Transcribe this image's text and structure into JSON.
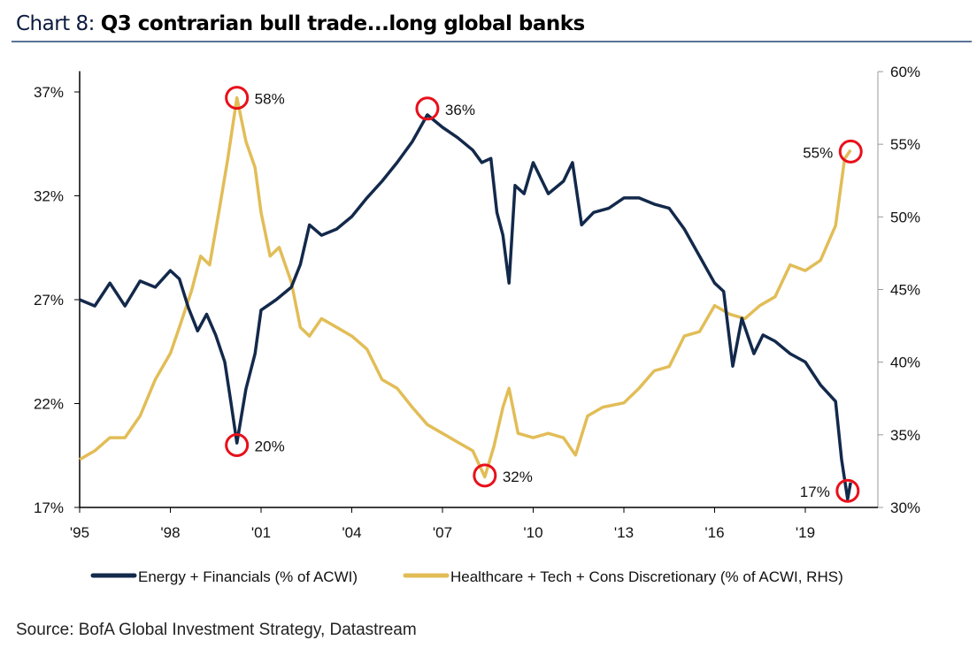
{
  "header": {
    "prefix": "Chart 8: ",
    "title": "Q3 contrarian bull trade...long global banks"
  },
  "source": "Source: BofA Global Investment Strategy, Datastream",
  "chart_data": {
    "type": "line",
    "title": "Q3 contrarian bull trade...long global banks",
    "x_ticks": [
      "'95",
      "'98",
      "'01",
      "'04",
      "'07",
      "'10",
      "'13",
      "'16",
      "'19"
    ],
    "x_tick_years": [
      1995,
      1998,
      2001,
      2004,
      2007,
      2010,
      2013,
      2016,
      2019
    ],
    "xlim": [
      1995,
      2021.4
    ],
    "y_left": {
      "ticks": [
        "17%",
        "22%",
        "27%",
        "32%",
        "37%"
      ],
      "tick_values": [
        17,
        22,
        27,
        32,
        37
      ],
      "ylim": [
        17,
        38
      ]
    },
    "y_right": {
      "ticks": [
        "30%",
        "35%",
        "40%",
        "45%",
        "50%",
        "55%",
        "60%"
      ],
      "tick_values": [
        30,
        35,
        40,
        45,
        50,
        55,
        60
      ],
      "ylim": [
        30,
        60
      ]
    },
    "grid": false,
    "legend": "bottom",
    "series": [
      {
        "name": "Energy + Financials (% of ACWI)",
        "axis": "left",
        "color": "#13294b",
        "x": [
          1995,
          1995.5,
          1996,
          1996.5,
          1997,
          1997.5,
          1998,
          1998.3,
          1998.6,
          1998.9,
          1999.2,
          1999.5,
          1999.8,
          2000,
          2000.2,
          2000.5,
          2000.8,
          2001,
          2001.5,
          2002,
          2002.3,
          2002.6,
          2003,
          2003.5,
          2004,
          2004.5,
          2005,
          2005.5,
          2006,
          2006.5,
          2007,
          2007.5,
          2008,
          2008.3,
          2008.6,
          2008.8,
          2009,
          2009.2,
          2009.4,
          2009.7,
          2010,
          2010.5,
          2011,
          2011.3,
          2011.6,
          2012,
          2012.5,
          2013,
          2013.5,
          2014,
          2014.5,
          2015,
          2015.5,
          2016,
          2016.3,
          2016.6,
          2016.9,
          2017.3,
          2017.6,
          2018,
          2018.5,
          2019,
          2019.5,
          2020,
          2020.2,
          2020.4,
          2020.5
        ],
        "y": [
          27.0,
          26.7,
          27.8,
          26.7,
          27.9,
          27.6,
          28.4,
          28.0,
          26.6,
          25.5,
          26.3,
          25.3,
          24.0,
          22.1,
          20.1,
          22.7,
          24.4,
          26.5,
          27.0,
          27.6,
          28.7,
          30.6,
          30.1,
          30.4,
          31.0,
          31.9,
          32.7,
          33.6,
          34.6,
          35.9,
          35.3,
          34.8,
          34.2,
          33.6,
          33.8,
          31.2,
          30.1,
          27.8,
          32.5,
          32.1,
          33.6,
          32.1,
          32.7,
          33.6,
          30.6,
          31.2,
          31.4,
          31.9,
          31.9,
          31.6,
          31.4,
          30.4,
          29.1,
          27.8,
          27.4,
          23.8,
          26.1,
          24.4,
          25.3,
          25.0,
          24.4,
          24.0,
          22.9,
          22.1,
          19.3,
          17.4,
          18.2
        ]
      },
      {
        "name": "Healthcare + Tech + Cons Discretionary (% of ACWI, RHS)",
        "axis": "right",
        "color": "#e2bd57",
        "x": [
          1995,
          1995.5,
          1996,
          1996.5,
          1997,
          1997.5,
          1998,
          1998.3,
          1998.7,
          1999,
          1999.3,
          1999.6,
          1999.9,
          2000.2,
          2000.5,
          2000.8,
          2001,
          2001.3,
          2001.6,
          2002,
          2002.3,
          2002.6,
          2003,
          2003.5,
          2004,
          2004.5,
          2005,
          2005.5,
          2006,
          2006.5,
          2007,
          2007.5,
          2008,
          2008.4,
          2008.7,
          2009,
          2009.2,
          2009.5,
          2010,
          2010.5,
          2011,
          2011.4,
          2011.8,
          2012.3,
          2013,
          2013.5,
          2014,
          2014.5,
          2015,
          2015.5,
          2016,
          2016.5,
          2017,
          2017.5,
          2018,
          2018.5,
          2019,
          2019.5,
          2020,
          2020.3,
          2020.5
        ],
        "y": [
          33.3,
          33.9,
          34.8,
          34.8,
          36.3,
          38.8,
          40.6,
          42.4,
          44.9,
          47.3,
          46.7,
          50.3,
          54.0,
          58.2,
          55.2,
          53.4,
          50.3,
          47.3,
          47.9,
          45.5,
          42.4,
          41.8,
          43.0,
          42.4,
          41.8,
          40.9,
          38.8,
          38.2,
          36.9,
          35.7,
          35.1,
          34.5,
          33.9,
          32.1,
          34.2,
          36.9,
          38.2,
          35.1,
          34.8,
          35.1,
          34.8,
          33.6,
          36.3,
          36.9,
          37.2,
          38.2,
          39.4,
          39.7,
          41.8,
          42.1,
          43.9,
          43.3,
          43.0,
          43.9,
          44.5,
          46.7,
          46.3,
          47.0,
          49.4,
          54.0,
          54.6
        ]
      }
    ],
    "annotations": [
      {
        "label": "58%",
        "axis": "right",
        "x": 2000.2,
        "y": 58.2,
        "side": "right"
      },
      {
        "label": "36%",
        "axis": "left",
        "x": 2006.5,
        "y": 36.2,
        "side": "right"
      },
      {
        "label": "55%",
        "axis": "right",
        "x": 2020.5,
        "y": 54.5,
        "side": "left"
      },
      {
        "label": "20%",
        "axis": "left",
        "x": 2000.2,
        "y": 20.0,
        "side": "right"
      },
      {
        "label": "32%",
        "axis": "right",
        "x": 2008.4,
        "y": 32.2,
        "side": "right"
      },
      {
        "label": "17%",
        "axis": "left",
        "x": 2020.4,
        "y": 17.8,
        "side": "left"
      }
    ],
    "annotation_color": "#e8101a"
  }
}
